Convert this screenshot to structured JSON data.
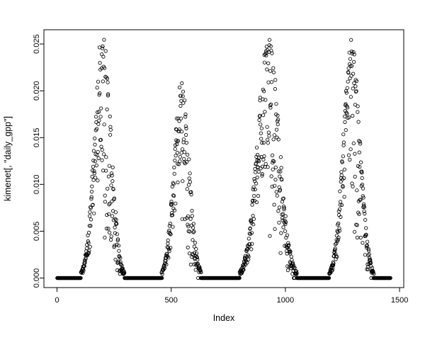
{
  "figure": {
    "background_color": "#ffffff",
    "axis_color": "#000000"
  },
  "chart_data": {
    "type": "scatter",
    "title": "",
    "xlabel": "Index",
    "ylabel": "kimenet[, \"daily_gpp\"]",
    "marker": "open-circle",
    "marker_color": "#000000",
    "grid": false,
    "xlim": [
      1,
      1460
    ],
    "ylim": [
      0,
      0.0255
    ],
    "xtick_values": [
      0,
      500,
      1000,
      1500
    ],
    "xtick_labels": [
      "0",
      "500",
      "1000",
      "1500"
    ],
    "ytick_values": [
      0,
      0.005,
      0.01,
      0.015,
      0.02,
      0.025
    ],
    "ytick_labels": [
      "0.000",
      "0.005",
      "0.010",
      "0.015",
      "0.020",
      "0.025"
    ],
    "x_start": 1,
    "x_end": 1460,
    "baseline_value": 0,
    "seasons": [
      {
        "start": 88,
        "end": 312,
        "center": 200,
        "sigma": 35,
        "max": 0.0255
      },
      {
        "start": 440,
        "end": 651,
        "center": 545,
        "sigma": 33,
        "max": 0.0205
      },
      {
        "start": 778,
        "end": 1072,
        "center": 925,
        "sigma": 46,
        "max": 0.0255
      },
      {
        "start": 1175,
        "end": 1405,
        "center": 1290,
        "sigma": 36,
        "max": 0.0248
      }
    ]
  }
}
